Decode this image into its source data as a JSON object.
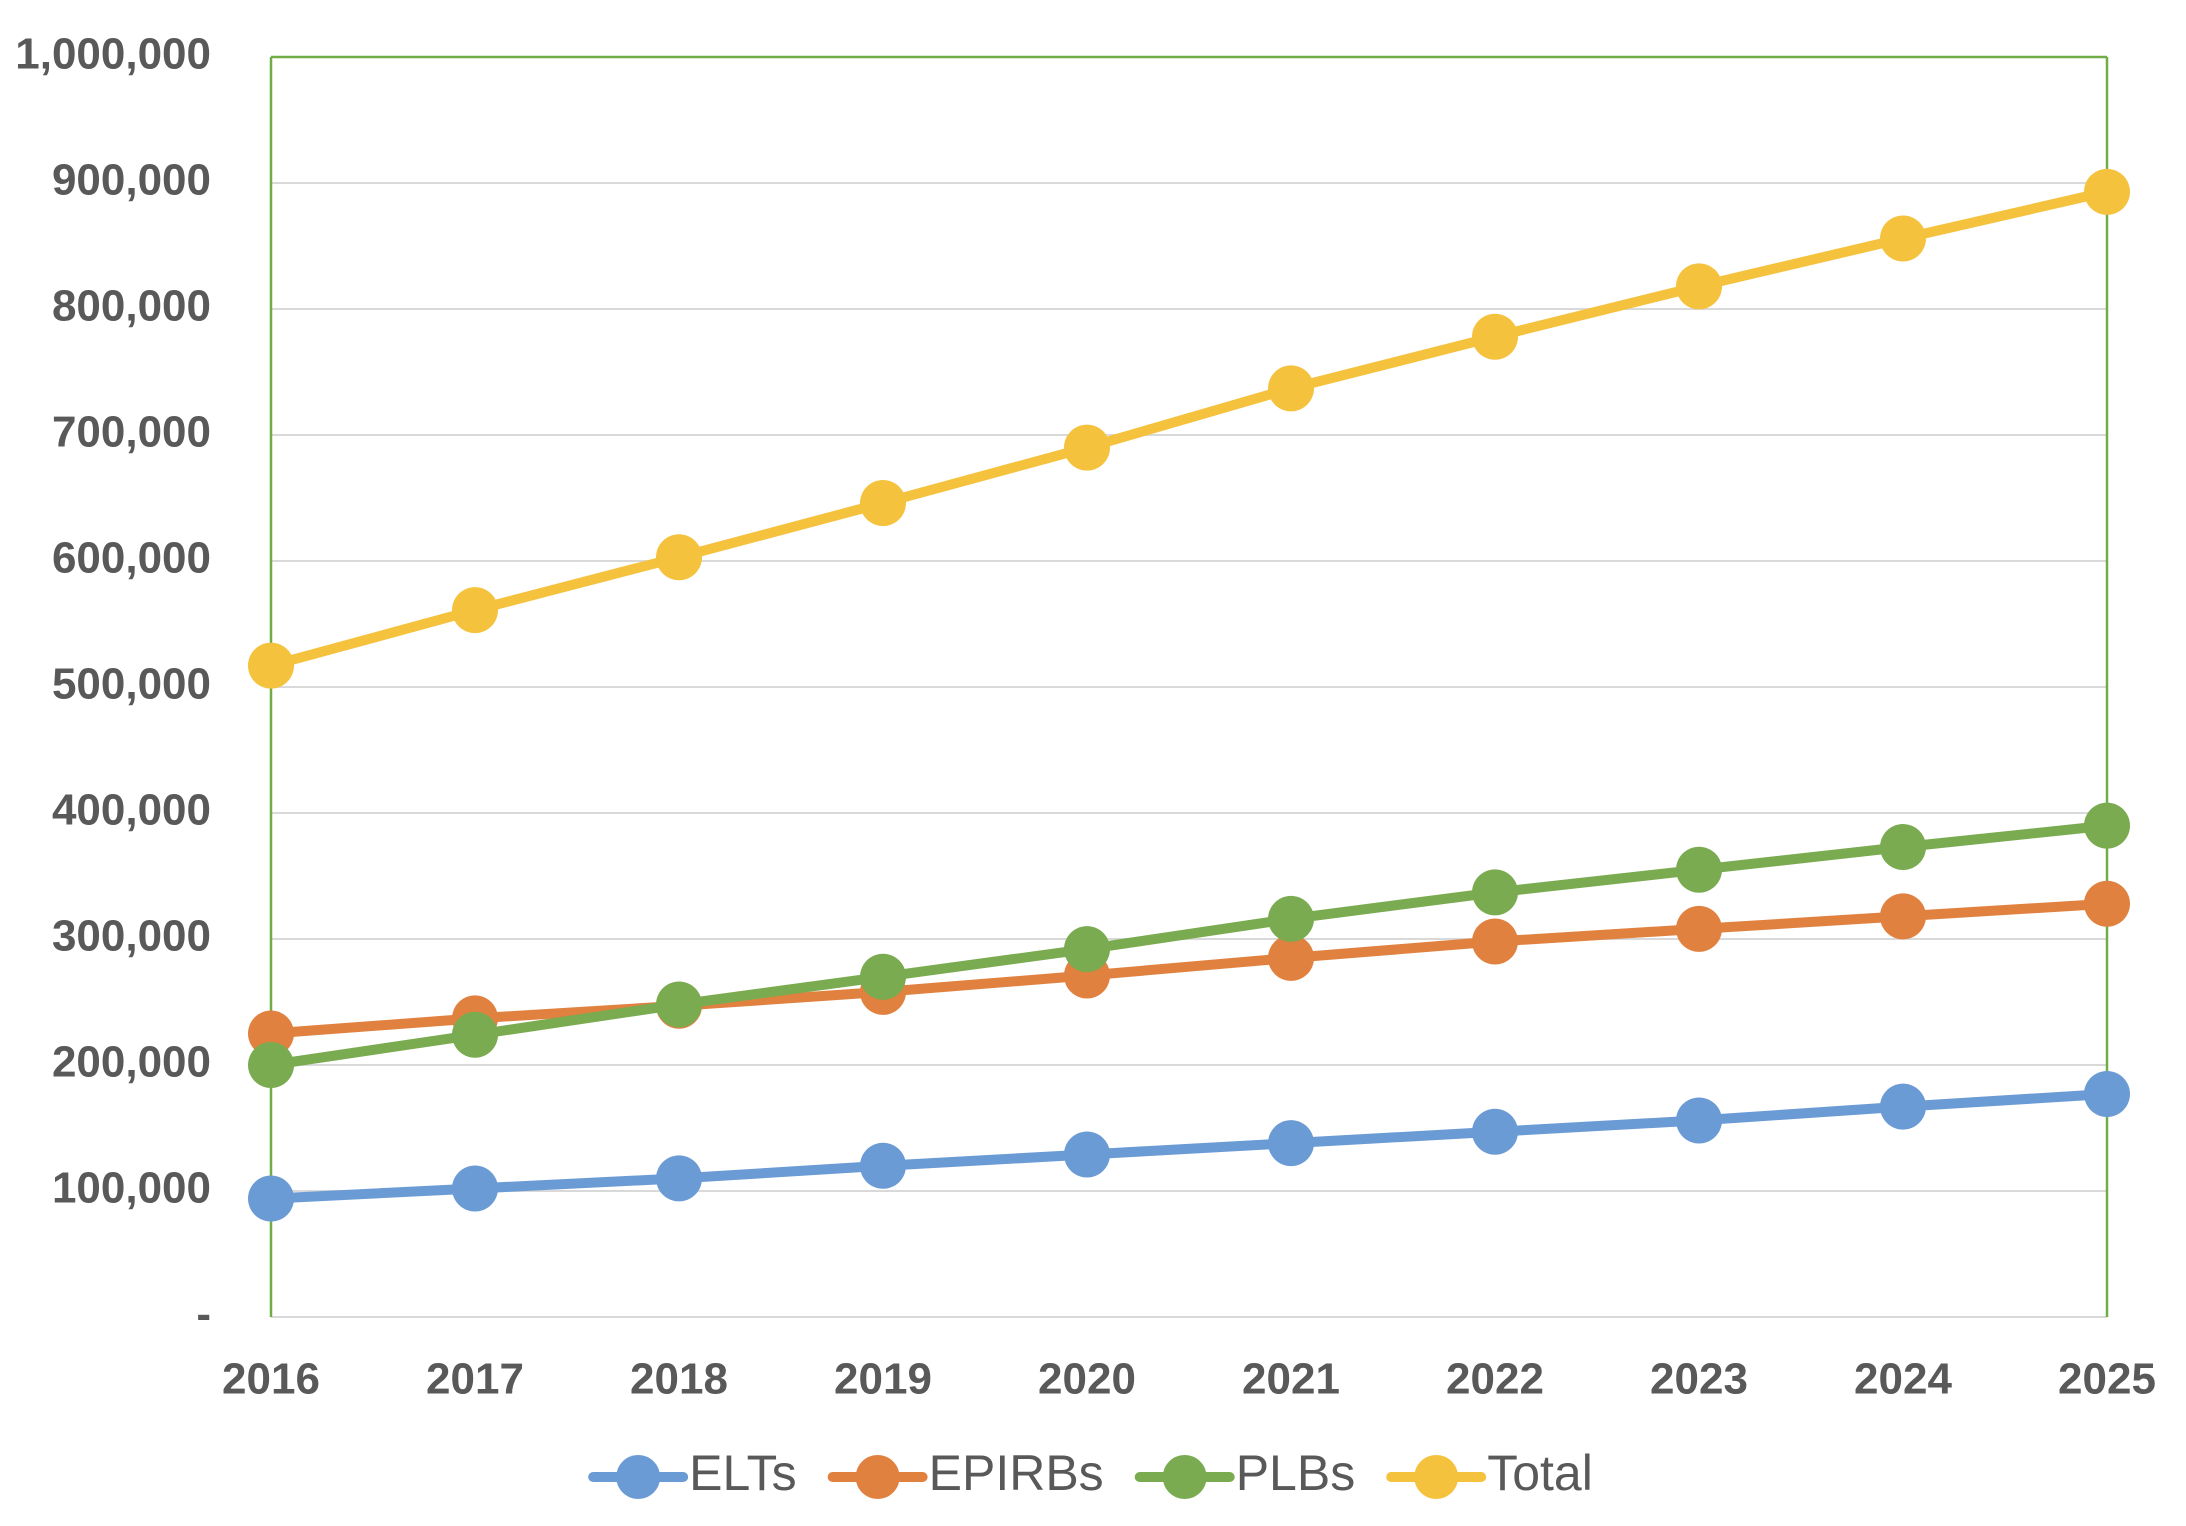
{
  "chart_data": {
    "type": "line",
    "title": "",
    "xlabel": "",
    "ylabel": "",
    "x": [
      "2016",
      "2017",
      "2018",
      "2019",
      "2020",
      "2021",
      "2022",
      "2023",
      "2024",
      "2025"
    ],
    "ylim": [
      0,
      1000000
    ],
    "y_ticks": [
      0,
      100000,
      200000,
      300000,
      400000,
      500000,
      600000,
      700000,
      800000,
      900000,
      1000000
    ],
    "y_tick_labels": [
      "-",
      "100,000",
      "200,000",
      "300,000",
      "400,000",
      "500,000",
      "600,000",
      "700,000",
      "800,000",
      "900,000",
      "1,000,000"
    ],
    "grid": true,
    "legend_position": "bottom",
    "series": [
      {
        "name": "ELTs",
        "color": "#6b9bd4",
        "values": [
          94000,
          102000,
          110000,
          120000,
          129000,
          138000,
          147000,
          156000,
          167000,
          177000
        ]
      },
      {
        "name": "EPIRBs",
        "color": "#e0813f",
        "values": [
          225000,
          237000,
          247000,
          258000,
          271000,
          285000,
          298000,
          308000,
          318000,
          328000
        ]
      },
      {
        "name": "PLBs",
        "color": "#7aab50",
        "values": [
          200000,
          224000,
          248000,
          270000,
          292000,
          316000,
          337000,
          355000,
          373000,
          390000
        ]
      },
      {
        "name": "Total",
        "color": "#f5c23e",
        "values": [
          517000,
          561000,
          603000,
          646000,
          690000,
          737000,
          778000,
          818000,
          856000,
          893000
        ]
      }
    ],
    "plot_border_color": "#70ad47",
    "gridline_color": "#d9d9d9"
  }
}
